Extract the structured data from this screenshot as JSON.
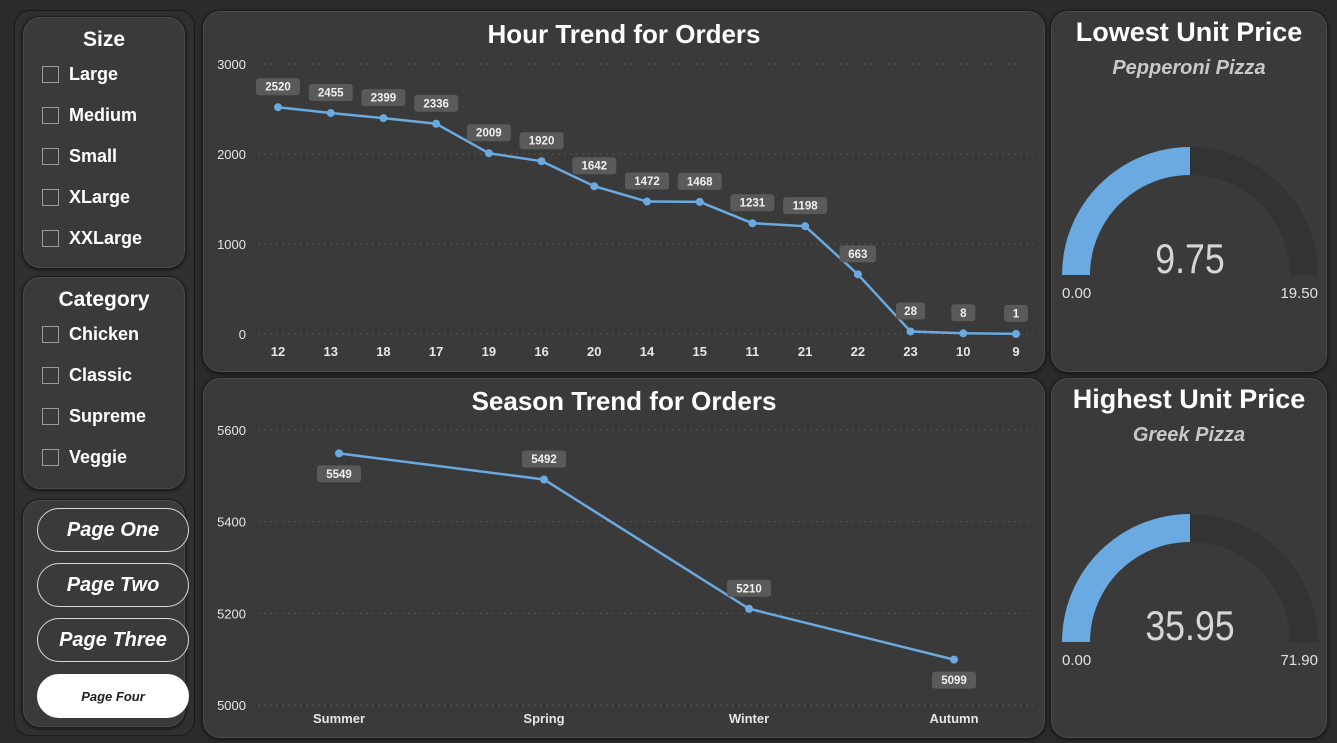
{
  "filters": {
    "size": {
      "title": "Size",
      "items": [
        "Large",
        "Medium",
        "Small",
        "XLarge",
        "XXLarge"
      ]
    },
    "category": {
      "title": "Category",
      "items": [
        "Chicken",
        "Classic",
        "Supreme",
        "Veggie"
      ]
    }
  },
  "nav": {
    "buttons": [
      "Page One",
      "Page Two",
      "Page Three",
      "Page Four"
    ],
    "active": "Page Four"
  },
  "colors": {
    "line": "#6aaae0",
    "gauge_fill": "#6aaae0",
    "gauge_track": "#2e2e2e",
    "label_bg": "#5a5a5a",
    "panel": "#3a3a3a"
  },
  "chart_data": [
    {
      "type": "line",
      "title": "Hour Trend for Orders",
      "categories": [
        "12",
        "13",
        "18",
        "17",
        "19",
        "16",
        "20",
        "14",
        "15",
        "11",
        "21",
        "22",
        "23",
        "10",
        "9"
      ],
      "values": [
        2520,
        2455,
        2399,
        2336,
        2009,
        1920,
        1642,
        1472,
        1468,
        1231,
        1198,
        663,
        28,
        8,
        1
      ],
      "ylim": [
        0,
        3000
      ],
      "yticks": [
        "0",
        "1000",
        "2000",
        "3000"
      ],
      "ytick_values": [
        0,
        1000,
        2000,
        3000
      ],
      "grid": true,
      "data_labels": "above"
    },
    {
      "type": "line",
      "title": "Season Trend for Orders",
      "categories": [
        "Summer",
        "Spring",
        "Winter",
        "Autumn"
      ],
      "values": [
        5549,
        5492,
        5210,
        5099
      ],
      "ylim": [
        5000,
        5600
      ],
      "yticks": [
        "5000",
        "5200",
        "5400",
        "5600"
      ],
      "ytick_values": [
        5000,
        5200,
        5400,
        5600
      ],
      "grid": true,
      "label_positions": [
        "below",
        "above",
        "above",
        "below"
      ]
    }
  ],
  "kpis": {
    "lowest": {
      "title": "Lowest Unit Price",
      "subtitle": "Pepperoni Pizza",
      "value": 9.75,
      "value_text": "9.75",
      "min": "0.00",
      "max": "19.50",
      "max_value": 19.5
    },
    "highest": {
      "title": "Highest Unit Price",
      "subtitle": "Greek Pizza",
      "value": 35.95,
      "value_text": "35.95",
      "min": "0.00",
      "max": "71.90",
      "max_value": 71.9
    }
  }
}
